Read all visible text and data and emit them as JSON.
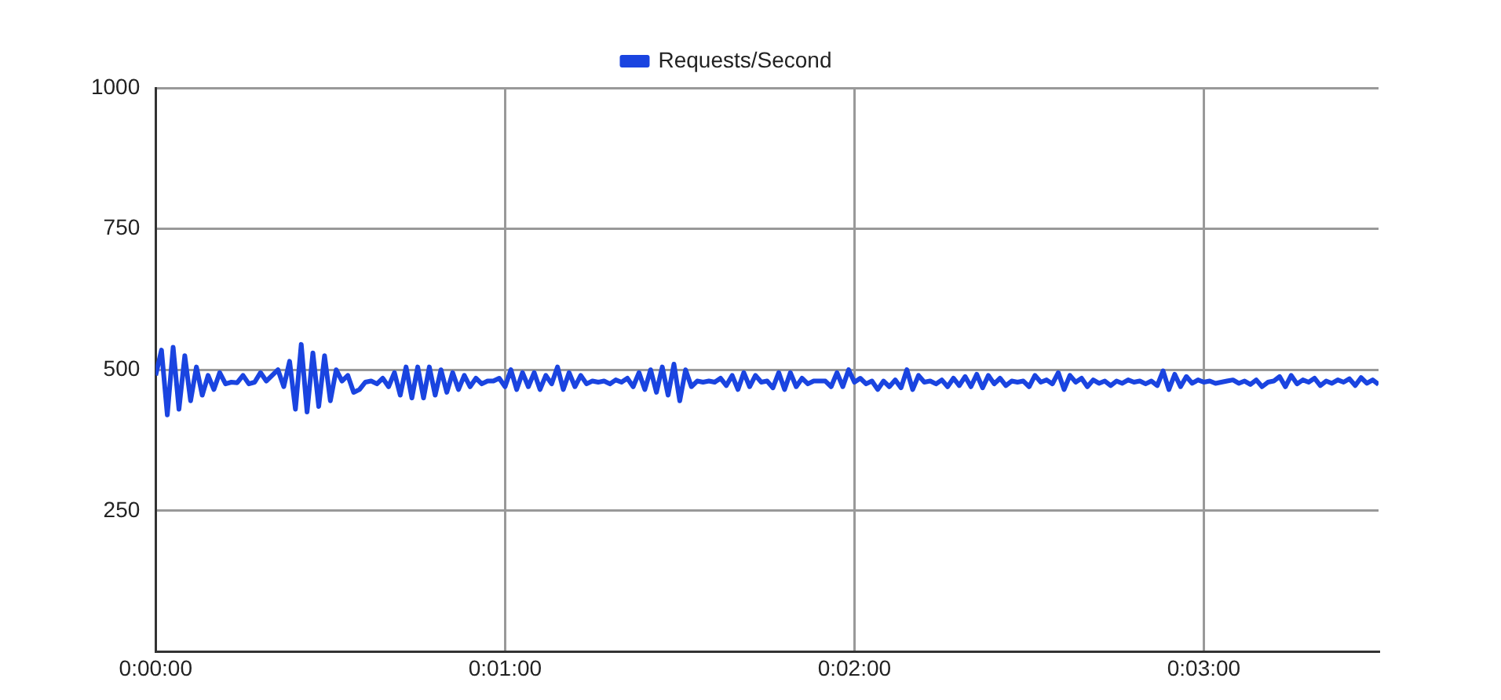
{
  "chart_data": {
    "type": "line",
    "legend": "top",
    "grid": true,
    "marker": "none",
    "line_style": "solid",
    "xlim": [
      0,
      210
    ],
    "xticks": [
      {
        "value": 0,
        "label": "0:00:00"
      },
      {
        "value": 60,
        "label": "0:01:00"
      },
      {
        "value": 120,
        "label": "0:02:00"
      },
      {
        "value": 180,
        "label": "0:03:00"
      }
    ],
    "ylim": [
      0,
      1000
    ],
    "yticks": [
      {
        "value": 0,
        "label": null
      },
      250,
      500,
      750,
      1000
    ],
    "x": [
      0,
      1,
      2,
      3,
      4,
      5,
      6,
      7,
      8,
      9,
      10,
      11,
      12,
      13,
      14,
      15,
      16,
      17,
      18,
      19,
      20,
      21,
      22,
      23,
      24,
      25,
      26,
      27,
      28,
      29,
      30,
      31,
      32,
      33,
      34,
      35,
      36,
      37,
      38,
      39,
      40,
      41,
      42,
      43,
      44,
      45,
      46,
      47,
      48,
      49,
      50,
      51,
      52,
      53,
      54,
      55,
      56,
      57,
      58,
      59,
      60,
      61,
      62,
      63,
      64,
      65,
      66,
      67,
      68,
      69,
      70,
      71,
      72,
      73,
      74,
      75,
      76,
      77,
      78,
      79,
      80,
      81,
      82,
      83,
      84,
      85,
      86,
      87,
      88,
      89,
      90,
      91,
      92,
      93,
      94,
      95,
      96,
      97,
      98,
      99,
      100,
      101,
      102,
      103,
      104,
      105,
      106,
      107,
      108,
      109,
      110,
      111,
      112,
      113,
      114,
      115,
      116,
      117,
      118,
      119,
      120,
      121,
      122,
      123,
      124,
      125,
      126,
      127,
      128,
      129,
      130,
      131,
      132,
      133,
      134,
      135,
      136,
      137,
      138,
      139,
      140,
      141,
      142,
      143,
      144,
      145,
      146,
      147,
      148,
      149,
      150,
      151,
      152,
      153,
      154,
      155,
      156,
      157,
      158,
      159,
      160,
      161,
      162,
      163,
      164,
      165,
      166,
      167,
      168,
      169,
      170,
      171,
      172,
      173,
      174,
      175,
      176,
      177,
      178,
      179,
      180,
      181,
      182,
      183,
      184,
      185,
      186,
      187,
      188,
      189,
      190,
      191,
      192,
      193,
      194,
      195,
      196,
      197,
      198,
      199,
      200,
      201,
      202,
      203,
      204,
      205,
      206,
      207,
      208,
      209,
      210
    ],
    "series": [
      {
        "name": "Requests/Second",
        "color": "#1a44e0",
        "values": [
          490,
          535,
          420,
          540,
          430,
          525,
          445,
          505,
          455,
          490,
          465,
          495,
          475,
          478,
          477,
          490,
          475,
          478,
          495,
          480,
          490,
          500,
          470,
          515,
          430,
          545,
          425,
          530,
          435,
          525,
          445,
          500,
          480,
          490,
          460,
          465,
          478,
          480,
          475,
          485,
          470,
          495,
          455,
          505,
          450,
          505,
          450,
          505,
          455,
          500,
          460,
          495,
          465,
          490,
          470,
          485,
          475,
          480,
          480,
          485,
          470,
          500,
          465,
          495,
          470,
          495,
          465,
          490,
          475,
          505,
          465,
          495,
          470,
          490,
          475,
          480,
          478,
          480,
          475,
          482,
          478,
          485,
          470,
          495,
          465,
          500,
          460,
          505,
          455,
          510,
          445,
          500,
          470,
          480,
          478,
          480,
          478,
          485,
          472,
          490,
          465,
          495,
          470,
          490,
          478,
          480,
          468,
          495,
          465,
          495,
          470,
          485,
          475,
          480,
          480,
          480,
          470,
          495,
          470,
          500,
          478,
          485,
          475,
          480,
          465,
          480,
          470,
          482,
          468,
          500,
          465,
          490,
          478,
          480,
          475,
          482,
          470,
          485,
          472,
          488,
          470,
          492,
          468,
          490,
          475,
          485,
          472,
          480,
          478,
          480,
          470,
          490,
          478,
          482,
          475,
          495,
          465,
          490,
          478,
          485,
          470,
          482,
          476,
          480,
          472,
          480,
          476,
          482,
          478,
          480,
          475,
          480,
          472,
          498,
          465,
          492,
          470,
          488,
          476,
          482,
          478,
          480,
          476,
          478,
          480,
          482,
          476,
          480,
          474,
          482,
          470,
          478,
          480,
          488,
          470,
          490,
          475,
          482,
          478,
          485,
          472,
          480,
          476,
          482,
          478,
          484,
          472,
          486,
          476,
          482,
          474
        ]
      }
    ]
  }
}
